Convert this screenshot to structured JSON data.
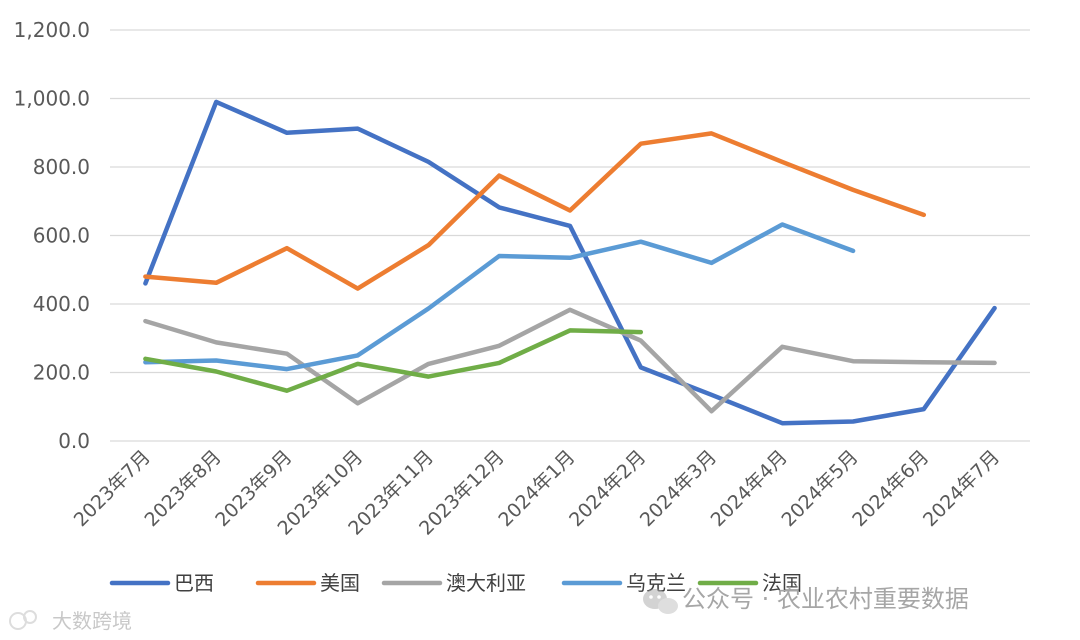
{
  "chart_data": {
    "type": "line",
    "title": "",
    "xlabel": "",
    "ylabel": "",
    "ylim": [
      0,
      1200
    ],
    "y_ticks": [
      "0.0",
      "200.0",
      "400.0",
      "600.0",
      "800.0",
      "1,000.0",
      "1,200.0"
    ],
    "categories": [
      "2023年7月",
      "2023年8月",
      "2023年9月",
      "2023年10月",
      "2023年11月",
      "2023年12月",
      "2024年1月",
      "2024年2月",
      "2024年3月",
      "2024年4月",
      "2024年5月",
      "2024年6月",
      "2024年7月"
    ],
    "grid": true,
    "legend_position": "bottom",
    "series": [
      {
        "name": "巴西",
        "color": "#4472C4",
        "values": [
          460,
          990,
          900,
          912,
          815,
          682,
          628,
          215,
          135,
          52,
          57,
          93,
          388
        ]
      },
      {
        "name": "美国",
        "color": "#ED7D31",
        "values": [
          480,
          462,
          563,
          445,
          572,
          775,
          673,
          868,
          898,
          815,
          733,
          660,
          null
        ]
      },
      {
        "name": "澳大利亚",
        "color": "#A5A5A5",
        "values": [
          350,
          288,
          255,
          110,
          225,
          278,
          383,
          293,
          87,
          275,
          233,
          230,
          228
        ]
      },
      {
        "name": "乌克兰",
        "color": "#5B9BD5",
        "values": [
          230,
          235,
          210,
          250,
          387,
          540,
          535,
          582,
          520,
          632,
          555,
          null,
          null
        ]
      },
      {
        "name": "法国",
        "color": "#70AD47",
        "values": [
          240,
          203,
          147,
          225,
          188,
          228,
          323,
          318,
          null,
          null,
          null,
          null,
          null
        ]
      }
    ]
  },
  "watermarks": {
    "left_text": "大数跨境",
    "right_text": "公众号 · 农业农村重要数据",
    "wechat_icon": "wechat-icon",
    "brand_icon": "brand-logo-icon"
  }
}
